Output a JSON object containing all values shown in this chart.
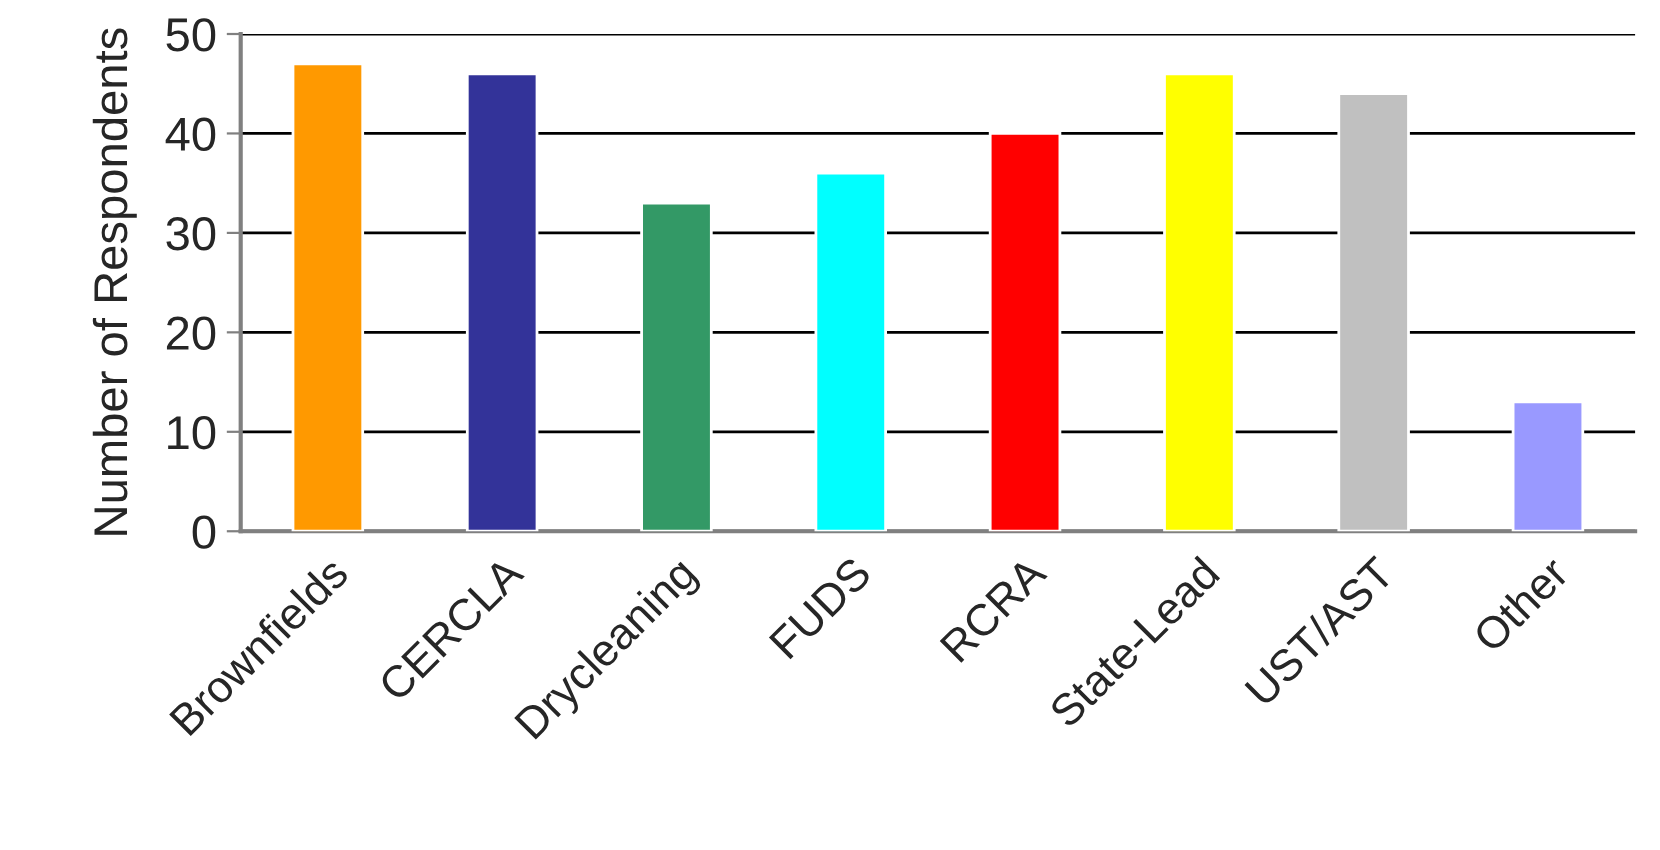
{
  "chart_data": {
    "type": "bar",
    "ylabel": "Number of Respondents",
    "categories": [
      "Brownfields",
      "CERCLA",
      "Drycleaning",
      "FUDS",
      "RCRA",
      "State-Lead",
      "UST/AST",
      "Other"
    ],
    "values": [
      47,
      46,
      33,
      36,
      40,
      46,
      44,
      13
    ],
    "colors": [
      "#ff9900",
      "#333399",
      "#339966",
      "#00ffff",
      "#ff0000",
      "#ffff00",
      "#c0c0c0",
      "#9999ff"
    ],
    "ylim": [
      0,
      50
    ],
    "yticks": [
      0,
      10,
      20,
      30,
      40,
      50
    ],
    "grid": "y",
    "legend": false
  }
}
